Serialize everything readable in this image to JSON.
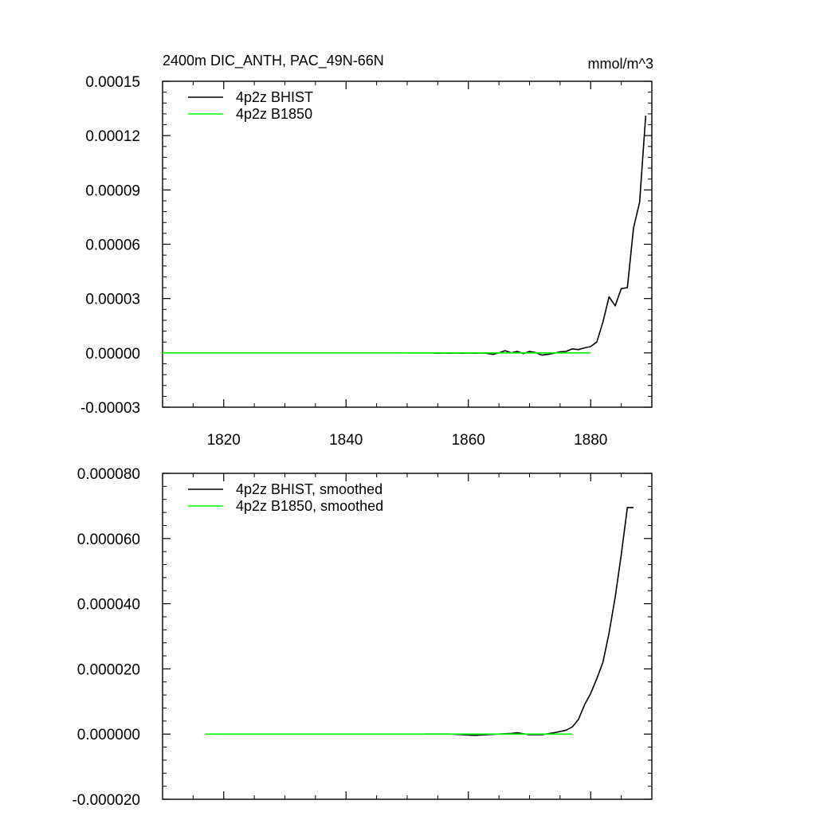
{
  "colors": {
    "axis": "#000000",
    "bhist": "#000000",
    "b1850": "#00ff00",
    "background": "#ffffff"
  },
  "chart_data": [
    {
      "type": "line",
      "title": "2400m DIC_ANTH, PAC_49N-66N",
      "units": "mmol/m^3",
      "xlabel": "",
      "ylabel": "",
      "xlim": [
        1810,
        1890
      ],
      "ylim": [
        -3e-05,
        0.00015
      ],
      "xticks": [
        1820,
        1840,
        1860,
        1880
      ],
      "xtick_labels": [
        "1820",
        "1840",
        "1860",
        "1880"
      ],
      "yticks": [
        -3e-05,
        0.0,
        3e-05,
        6e-05,
        9e-05,
        0.00012,
        0.00015
      ],
      "ytick_labels": [
        "-0.00003",
        "0.00000",
        "0.00003",
        "0.00006",
        "0.00009",
        "0.00012",
        "0.00015"
      ],
      "legend_position": "top-left",
      "grid": false,
      "series": [
        {
          "name": "4p2z BHIST",
          "color": "#000000",
          "x": [
            1850,
            1851,
            1852,
            1853,
            1854,
            1855,
            1856,
            1857,
            1858,
            1859,
            1860,
            1861,
            1862,
            1863,
            1864,
            1865,
            1866,
            1867,
            1868,
            1869,
            1870,
            1871,
            1872,
            1873,
            1874,
            1875,
            1876,
            1877,
            1878,
            1879,
            1880,
            1881,
            1882,
            1883,
            1884,
            1885,
            1886,
            1887,
            1888,
            1889
          ],
          "values": [
            0.0,
            0.0,
            0.0,
            0.0,
            0.0,
            -2e-07,
            0.0,
            -2e-07,
            0.0,
            -2e-07,
            0.0,
            -2e-07,
            0.0,
            -2e-07,
            -8e-07,
            0.0,
            1.2e-06,
            0.0,
            8e-07,
            -4e-07,
            8e-07,
            2e-07,
            -1.2e-06,
            -8e-07,
            -2e-07,
            6e-07,
            8e-07,
            2.2e-06,
            1.8e-06,
            2.8e-06,
            3.5e-06,
            6e-06,
            1.7e-05,
            3.1e-05,
            2.6e-05,
            3.55e-05,
            3.6e-05,
            6.9e-05,
            8.3e-05,
            0.000131
          ]
        },
        {
          "name": "4p2z B1850",
          "color": "#00ff00",
          "x": [
            1810,
            1820,
            1830,
            1840,
            1850,
            1860,
            1870,
            1880
          ],
          "values": [
            0.0,
            0.0,
            0.0,
            0.0,
            0.0,
            0.0,
            0.0,
            0.0
          ]
        }
      ]
    },
    {
      "type": "line",
      "title": "",
      "xlabel": "",
      "ylabel": "",
      "xlim": [
        1810,
        1890
      ],
      "ylim": [
        -2e-05,
        8e-05
      ],
      "xticks": [
        1820,
        1840,
        1860,
        1880
      ],
      "xtick_labels": [],
      "yticks": [
        -2e-05,
        0.0,
        2e-05,
        4e-05,
        6e-05,
        8e-05
      ],
      "ytick_labels": [
        "-0.000020",
        "0.000000",
        "0.000020",
        "0.000040",
        "0.000060",
        "0.000080"
      ],
      "legend_position": "top-left",
      "grid": false,
      "series": [
        {
          "name": "4p2z BHIST, smoothed",
          "color": "#000000",
          "x": [
            1853,
            1855,
            1857,
            1859,
            1861,
            1863,
            1865,
            1867,
            1868,
            1870,
            1872,
            1874,
            1876,
            1877,
            1878,
            1879,
            1880,
            1881,
            1882,
            1883,
            1884,
            1885,
            1886,
            1887
          ],
          "values": [
            0.0,
            0.0,
            0.0,
            -2e-07,
            -4e-07,
            -2e-07,
            0.0,
            2e-07,
            4e-07,
            -2e-07,
            -2e-07,
            4e-07,
            1.2e-06,
            2.2e-06,
            4.5e-06,
            9e-06,
            1.25e-05,
            1.7e-05,
            2.2e-05,
            3.1e-05,
            4.2e-05,
            5.5e-05,
            6.95e-05,
            6.95e-05
          ]
        },
        {
          "name": "4p2z B1850, smoothed",
          "color": "#00ff00",
          "x": [
            1817,
            1830,
            1840,
            1850,
            1860,
            1870,
            1877
          ],
          "values": [
            0.0,
            0.0,
            0.0,
            0.0,
            0.0,
            0.0,
            0.0
          ]
        }
      ]
    }
  ]
}
